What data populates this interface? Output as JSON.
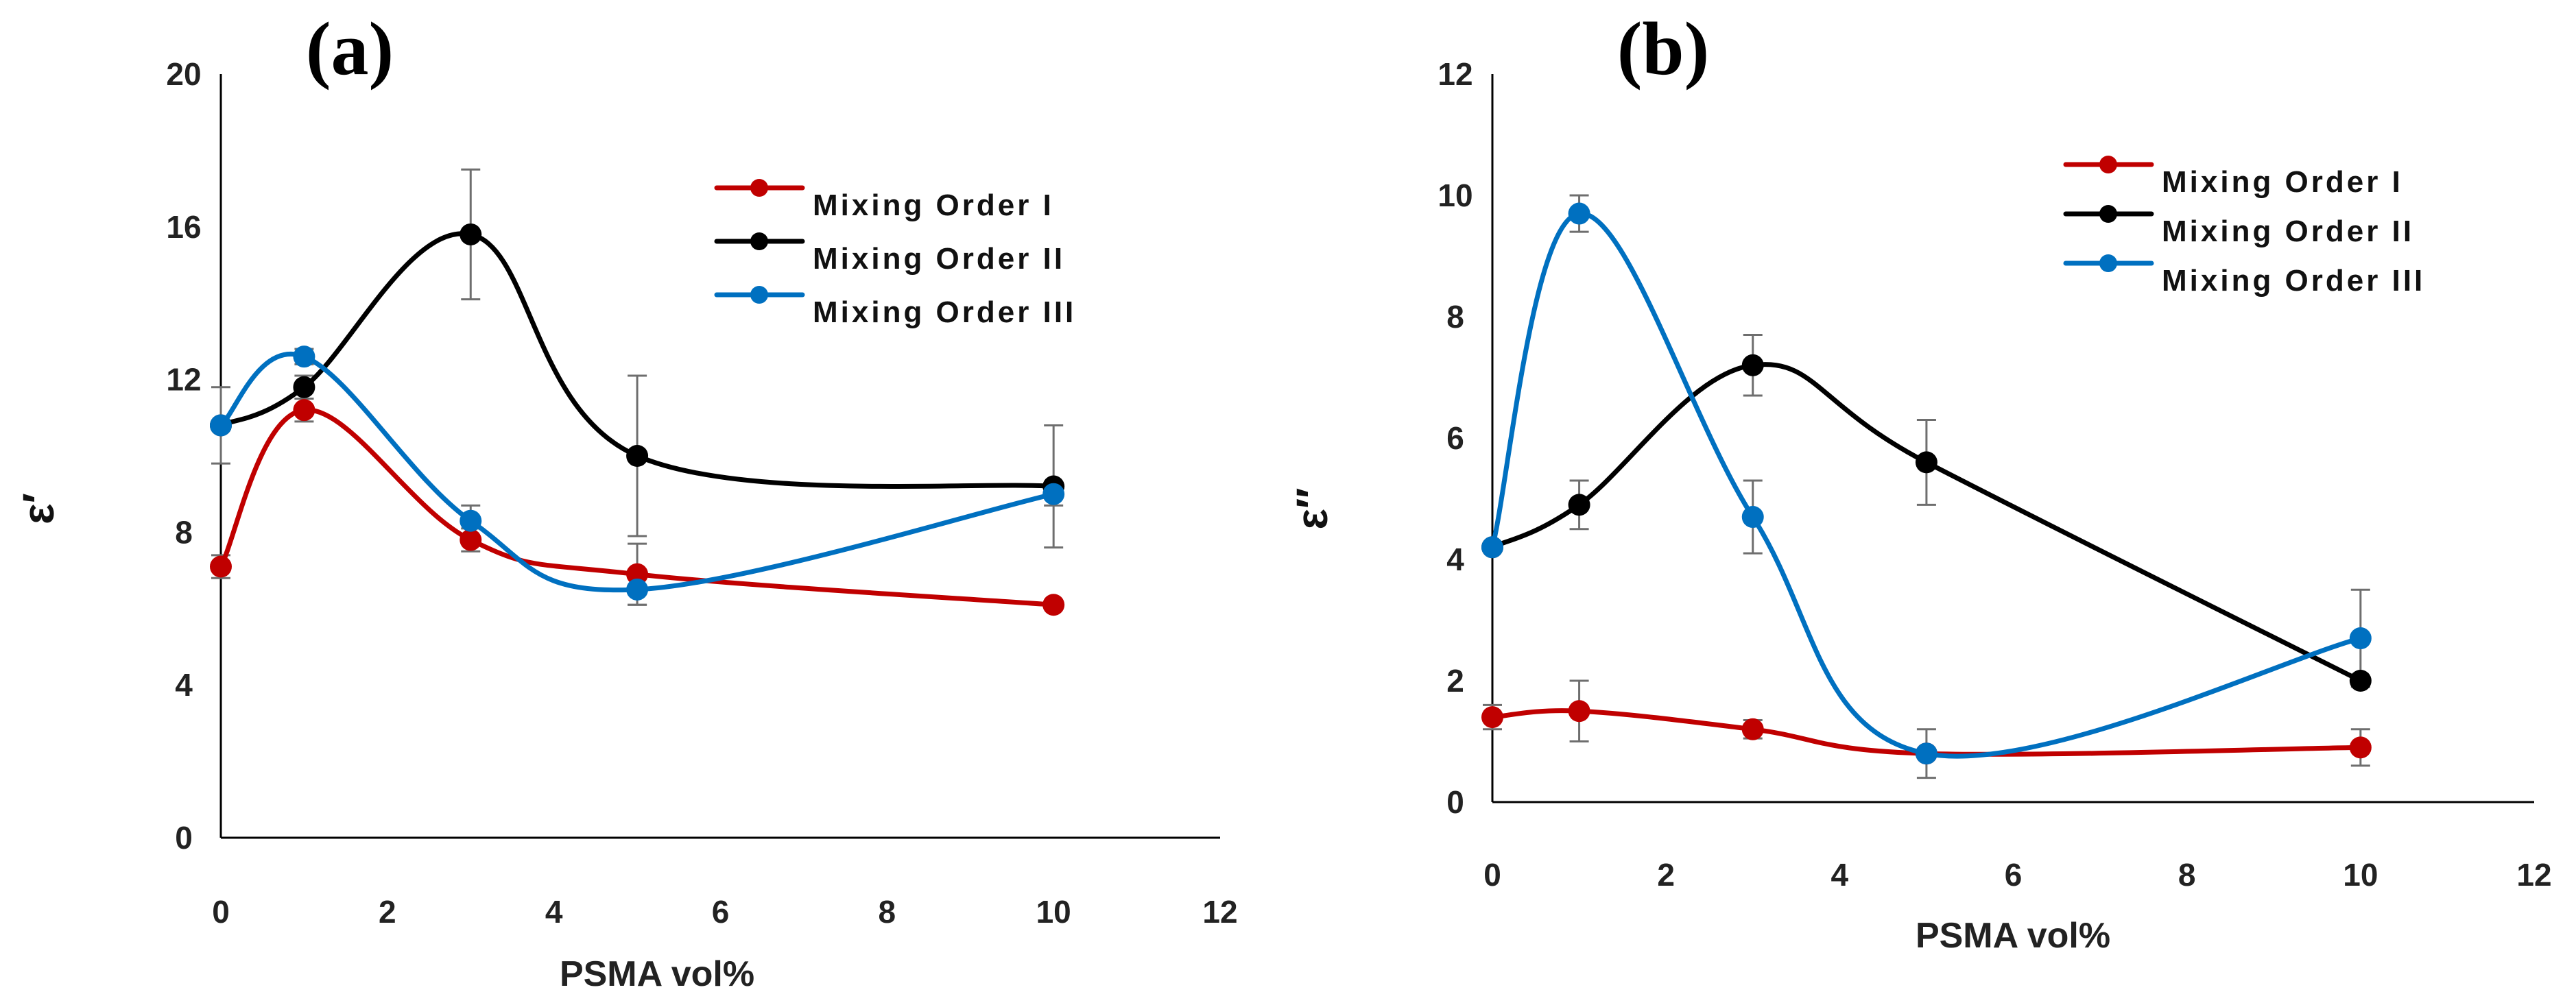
{
  "chart_data": [
    {
      "type": "line",
      "panel": "(a)",
      "xlabel": "PSMA vol%",
      "ylabel": "ε′",
      "xlim": [
        0,
        12
      ],
      "ylim": [
        0,
        20
      ],
      "xticks": [
        0,
        2,
        4,
        6,
        8,
        10,
        12
      ],
      "yticks": [
        0,
        4,
        8,
        12,
        16,
        20
      ],
      "grid": false,
      "legend_position": "top-right",
      "series": [
        {
          "name": "Mixing Order I",
          "color": "#c00000",
          "x": [
            0,
            1,
            3,
            5,
            10
          ],
          "y": [
            7.1,
            11.2,
            7.8,
            6.9,
            6.1
          ],
          "error": [
            0.3,
            0.3,
            0.3,
            0.8,
            0.0
          ]
        },
        {
          "name": "Mixing Order II",
          "color": "#000000",
          "x": [
            0,
            1,
            3,
            5,
            10
          ],
          "y": [
            10.8,
            11.8,
            15.8,
            10.0,
            9.2
          ],
          "error": [
            1.0,
            0.3,
            1.7,
            2.1,
            1.6
          ]
        },
        {
          "name": "Mixing Order III",
          "color": "#0070c0",
          "x": [
            0,
            1,
            3,
            5,
            10
          ],
          "y": [
            10.8,
            12.6,
            8.3,
            6.5,
            9.0
          ],
          "error": [
            0.0,
            0.2,
            0.4,
            0.4,
            0.3
          ]
        }
      ]
    },
    {
      "type": "line",
      "panel": "(b)",
      "xlabel": "PSMA vol%",
      "ylabel": "ε″",
      "xlim": [
        0,
        12
      ],
      "ylim": [
        0,
        12
      ],
      "xticks": [
        0,
        2,
        4,
        6,
        8,
        10,
        12
      ],
      "yticks": [
        0,
        2,
        4,
        6,
        8,
        10,
        12
      ],
      "grid": false,
      "legend_position": "top-right",
      "series": [
        {
          "name": "Mixing Order I",
          "color": "#c00000",
          "x": [
            0,
            1,
            3,
            5,
            10
          ],
          "y": [
            1.4,
            1.5,
            1.2,
            0.8,
            0.9
          ],
          "error": [
            0.2,
            0.5,
            0.15,
            0.4,
            0.3
          ]
        },
        {
          "name": "Mixing Order II",
          "color": "#000000",
          "x": [
            0,
            1,
            3,
            5,
            10
          ],
          "y": [
            4.2,
            4.9,
            7.2,
            5.6,
            2.0
          ],
          "error": [
            0.0,
            0.4,
            0.5,
            0.7,
            0.0
          ]
        },
        {
          "name": "Mixing Order III",
          "color": "#0070c0",
          "x": [
            0,
            1,
            3,
            5,
            10
          ],
          "y": [
            4.2,
            9.7,
            4.7,
            0.8,
            2.7
          ],
          "error": [
            0.0,
            0.3,
            0.6,
            0.0,
            0.8
          ]
        }
      ]
    }
  ]
}
